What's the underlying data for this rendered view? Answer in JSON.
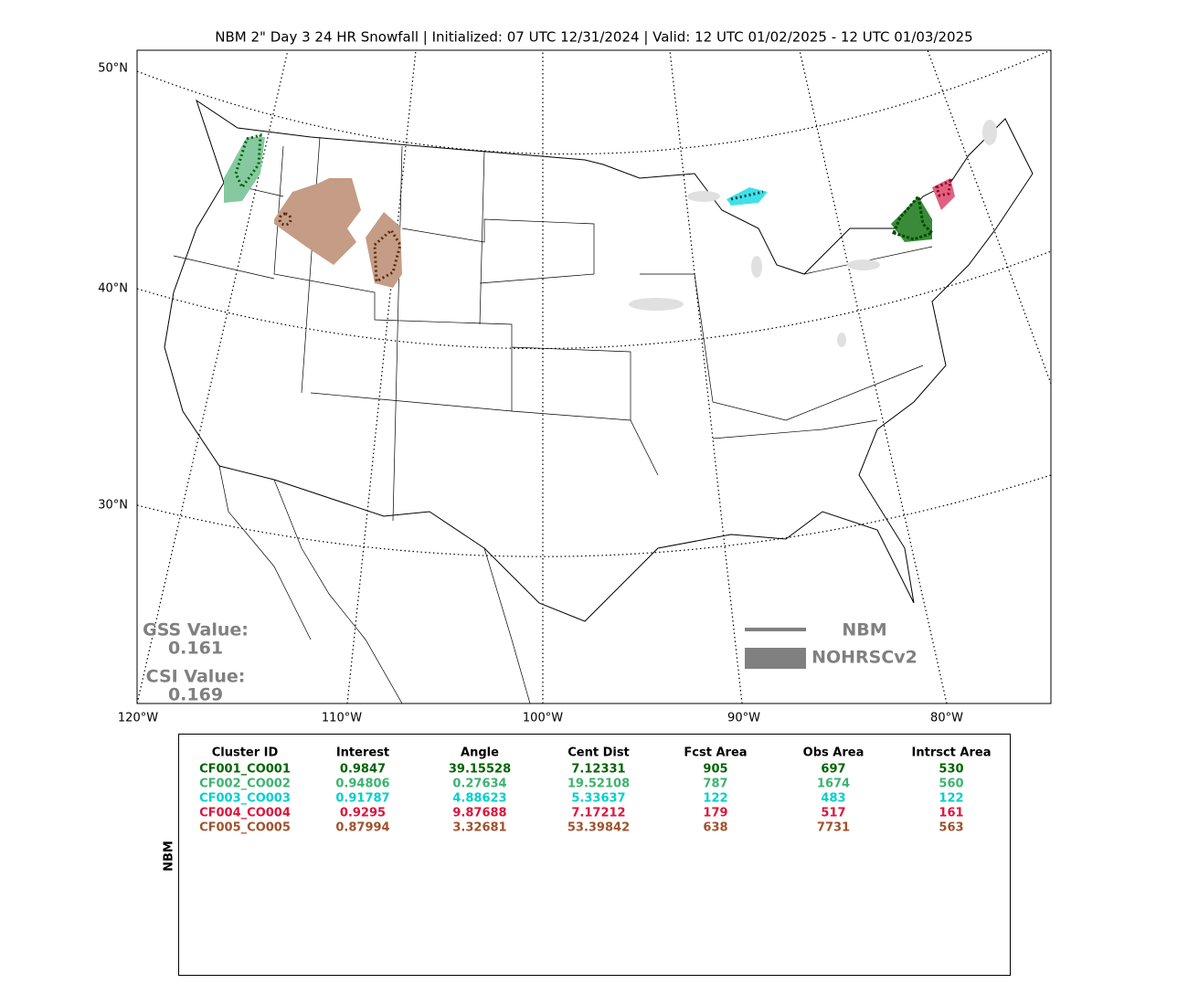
{
  "title": "NBM 2\" Day 3 24 HR Snowfall | Initialized: 07 UTC 12/31/2024 | Valid: 12 UTC 01/02/2025 - 12 UTC 01/03/2025",
  "map": {
    "lat_labels": [
      "50°N",
      "40°N",
      "30°N"
    ],
    "lon_labels": [
      "120°W",
      "110°W",
      "100°W",
      "90°W",
      "80°W"
    ],
    "gss": {
      "label": "GSS Value:",
      "value": 0.161
    },
    "csi": {
      "label": "CSI Value:",
      "value": 0.169
    },
    "legend": {
      "line": "NBM",
      "fill": "NOHRSCv2"
    }
  },
  "table": {
    "side_label": "NBM",
    "header": [
      "Cluster ID",
      "Interest",
      "Angle",
      "Cent Dist",
      "Fcst Area",
      "Obs Area",
      "Intrsct Area"
    ],
    "rows": [
      {
        "color": "#006400",
        "cells": [
          "CF001_CO001",
          0.9847,
          39.15528,
          7.12331,
          905,
          697,
          530
        ]
      },
      {
        "color": "#3cb371",
        "cells": [
          "CF002_CO002",
          0.94806,
          0.27634,
          19.52108,
          787,
          1674,
          560
        ]
      },
      {
        "color": "#00ced1",
        "cells": [
          "CF003_CO003",
          0.91787,
          4.88623,
          5.33637,
          122,
          483,
          122
        ]
      },
      {
        "color": "#dc143c",
        "cells": [
          "CF004_CO004",
          0.9295,
          9.87688,
          7.17212,
          179,
          517,
          161
        ]
      },
      {
        "color": "#a0522d",
        "cells": [
          "CF005_CO005",
          0.87994,
          3.32681,
          53.39842,
          638,
          7731,
          563
        ]
      }
    ]
  }
}
